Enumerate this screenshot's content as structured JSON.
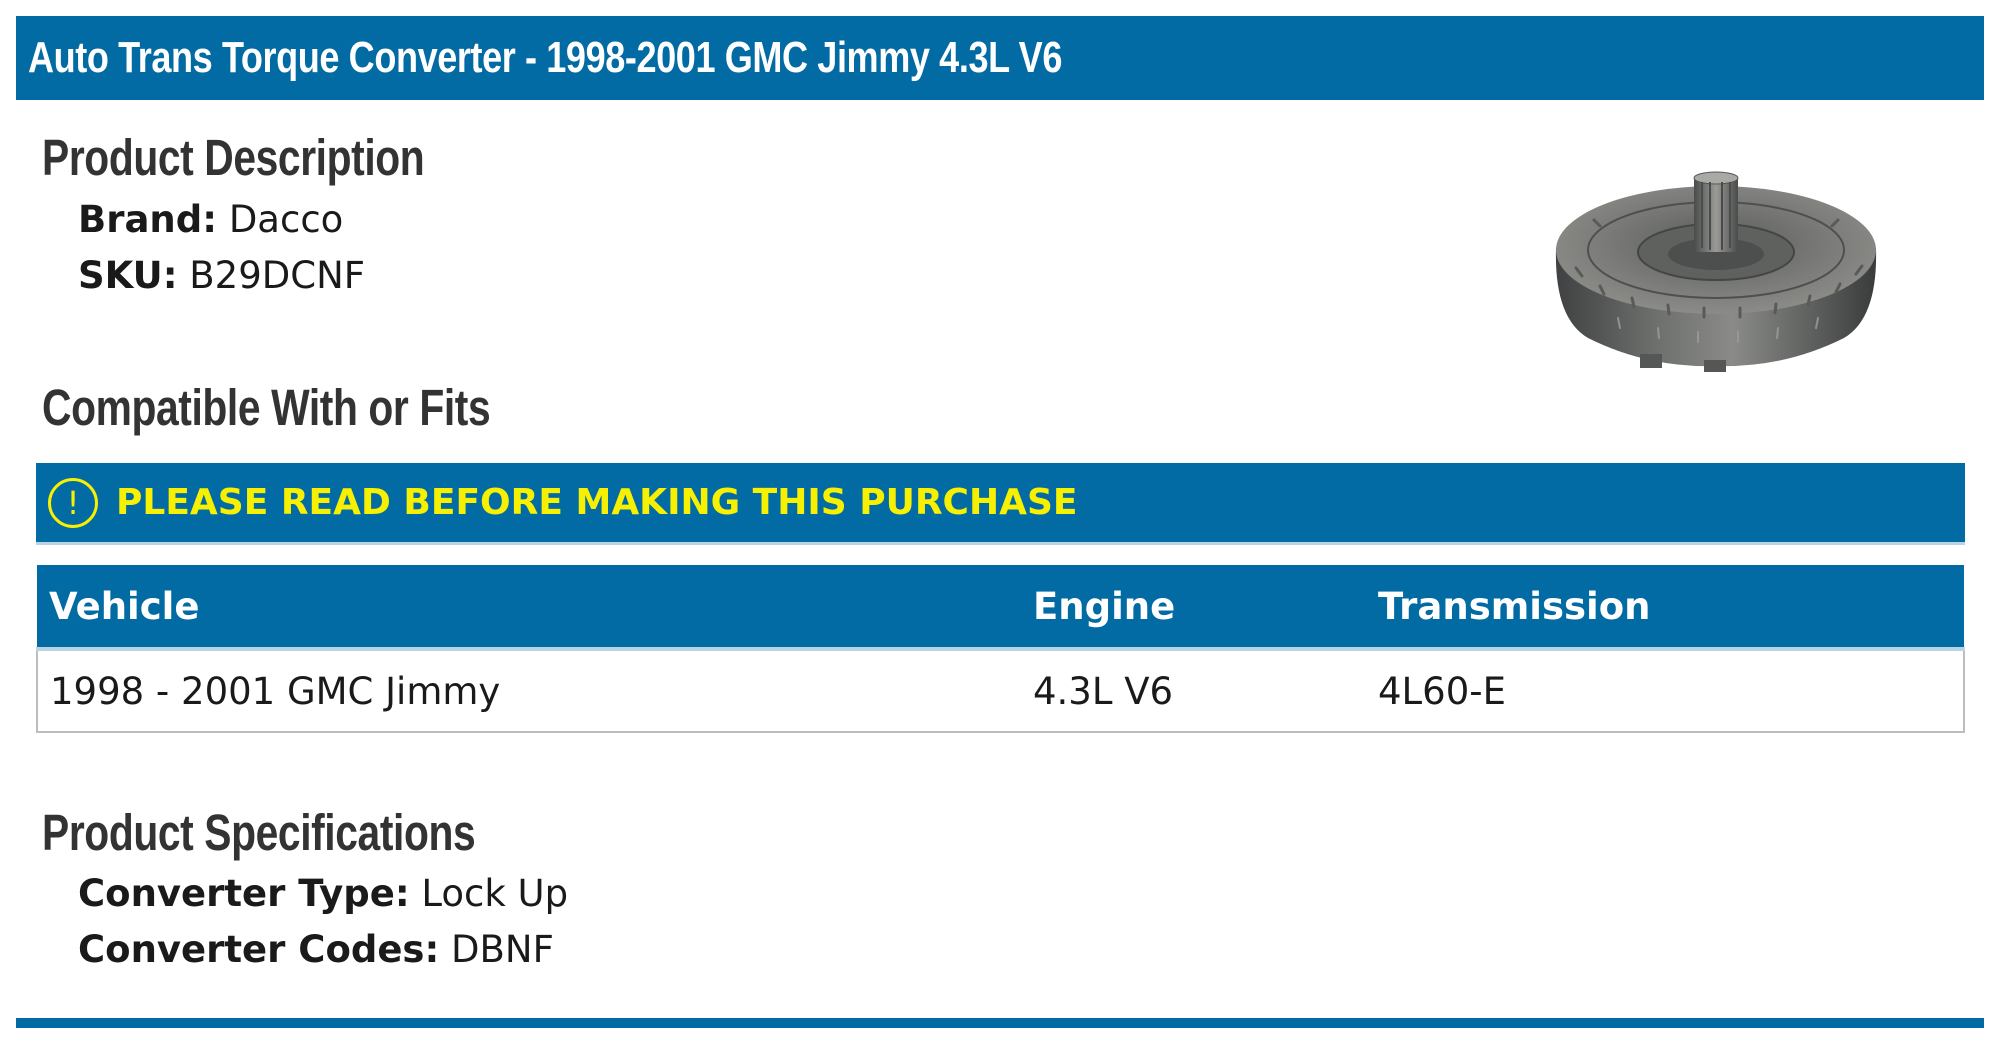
{
  "header": {
    "title": "Auto Trans Torque Converter - 1998-2001 GMC Jimmy 4.3L V6"
  },
  "product_description": {
    "heading": "Product Description",
    "brand_label": "Brand:",
    "brand_value": "Dacco",
    "sku_label": "SKU:",
    "sku_value": "B29DCNF"
  },
  "compatibility": {
    "heading": "Compatible With or Fits",
    "warning_icon": "exclamation-circle-icon",
    "warning_text": "PLEASE READ BEFORE MAKING THIS PURCHASE",
    "columns": [
      "Vehicle",
      "Engine",
      "Transmission"
    ],
    "rows": [
      [
        "1998 - 2001 GMC Jimmy",
        "4.3L V6",
        "4L60-E"
      ]
    ]
  },
  "product_specifications": {
    "heading": "Product Specifications",
    "converter_type_label": "Converter Type:",
    "converter_type_value": "Lock Up",
    "converter_codes_label": "Converter Codes:",
    "converter_codes_value": "DBNF"
  },
  "colors": {
    "brand_blue": "#036ba3",
    "warning_yellow": "#f7f000",
    "heading_gray": "#333333"
  }
}
